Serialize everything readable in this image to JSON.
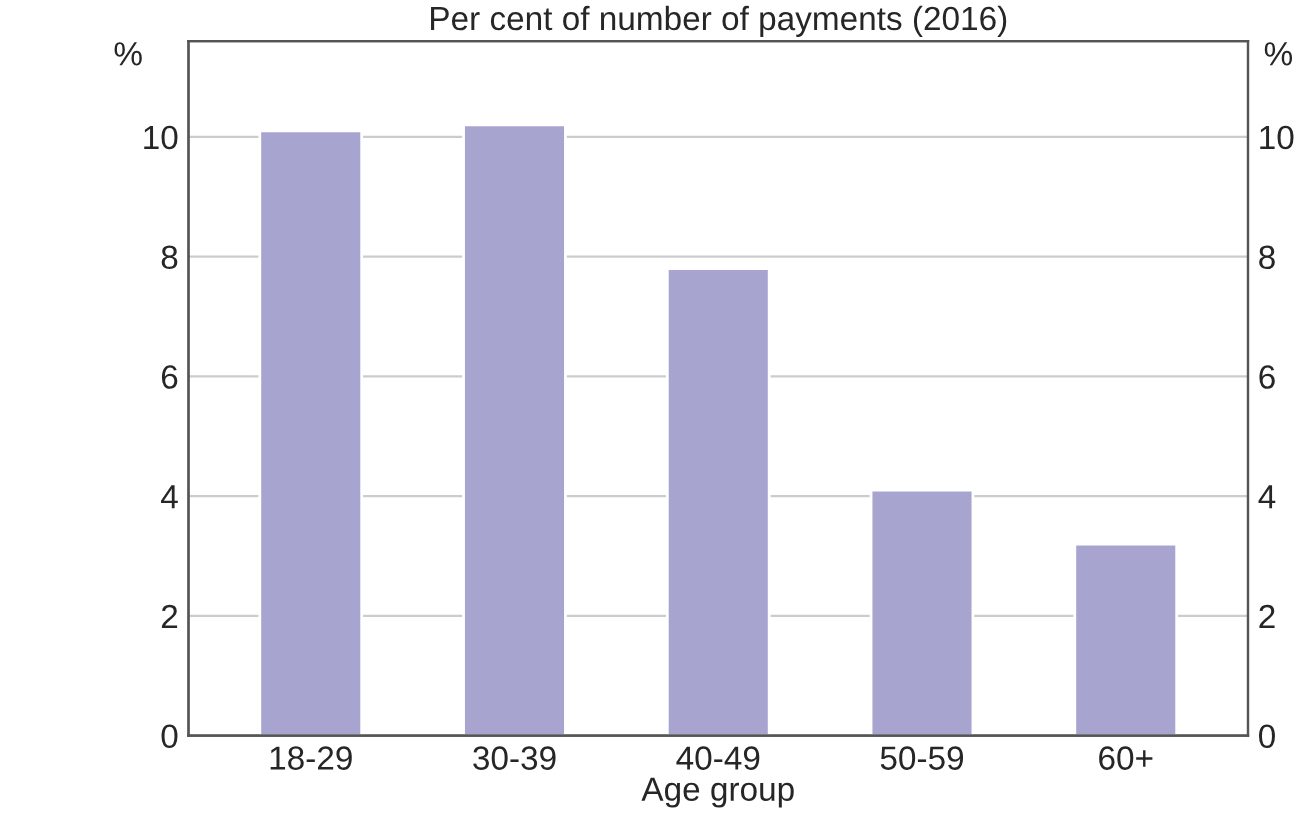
{
  "chart_data": {
    "type": "bar",
    "title": "Per cent of number of payments (2016)",
    "xlabel": "Age group",
    "ylabel": "%",
    "y2label": "%",
    "categories": [
      "18-29",
      "30-39",
      "40-49",
      "50-59",
      "60+"
    ],
    "values": [
      10.1,
      10.2,
      7.8,
      4.1,
      3.2
    ],
    "color": "#a7a5cf",
    "ylim": [
      0,
      11.6
    ],
    "yticks": [
      0,
      2,
      4,
      6,
      8,
      10
    ],
    "y2lim": [
      0,
      11.6
    ],
    "y2ticks": [
      0,
      2,
      4,
      6,
      8,
      10
    ],
    "grid": "y"
  }
}
